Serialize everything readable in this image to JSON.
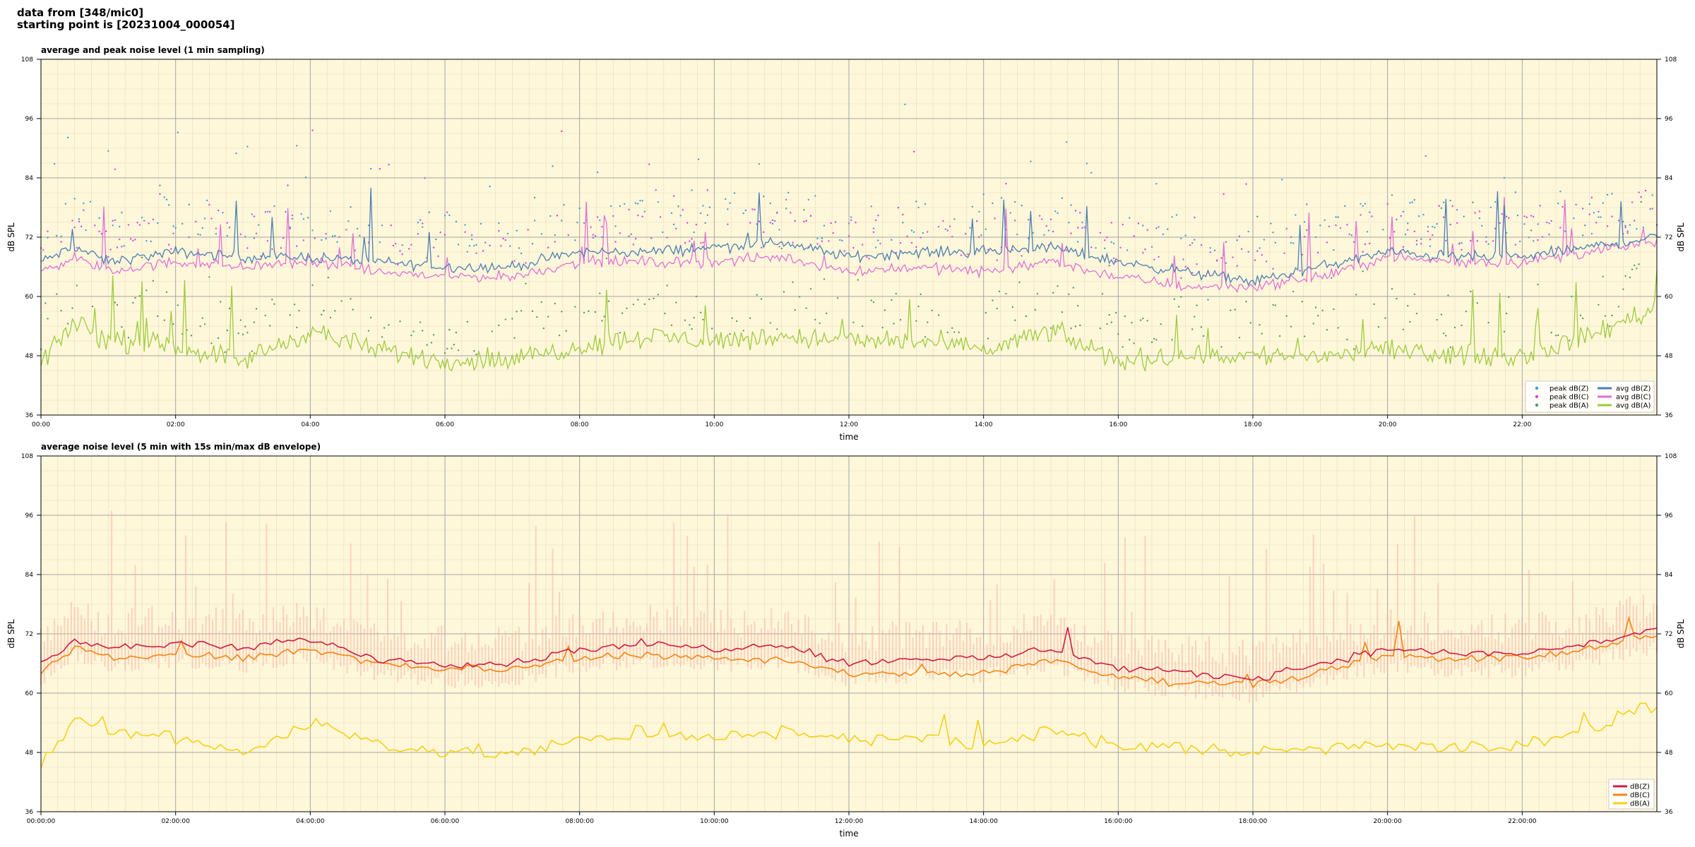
{
  "header": {
    "line1": "data from [348/mic0]",
    "line2": "starting point is [20231004_000054]"
  },
  "colors": {
    "background": "#fff7da",
    "grid_major": "#a6a6a6",
    "grid_minor": "#e6dcc0",
    "peak_z": "#3c9dd6",
    "peak_c": "#e23ee0",
    "peak_a": "#4c9b6a",
    "avg_z": "#4a7fb2",
    "avg_c": "#e26fd6",
    "avg_a": "#9ccc3c",
    "env": "#f6b5a5",
    "dbz": "#d01c44",
    "dbc": "#f68512",
    "dba": "#f6d012"
  },
  "chart_data": [
    {
      "type": "line",
      "title": "average and peak noise level (1 min sampling)",
      "xlabel": "time",
      "ylabel": "dB SPL",
      "xlim_hours": [
        0,
        24
      ],
      "ylim": [
        36,
        108
      ],
      "yticks": [
        36,
        48,
        60,
        72,
        84,
        96,
        108
      ],
      "xtick_labels": [
        "00:00",
        "02:00",
        "04:00",
        "06:00",
        "08:00",
        "10:00",
        "12:00",
        "14:00",
        "16:00",
        "18:00",
        "20:00",
        "22:00"
      ],
      "grid": true,
      "legend_position": "bottom-right",
      "legend": [
        "peak dB(Z)",
        "peak dB(C)",
        "peak dB(A)",
        "avg dB(Z)",
        "avg dB(C)",
        "avg dB(A)"
      ],
      "series": [
        {
          "name": "avg dB(Z)",
          "x": [
            0,
            0.5,
            1,
            2,
            3,
            4,
            5,
            6,
            7,
            8,
            9,
            10,
            11,
            12,
            13,
            14,
            15,
            16,
            17,
            18,
            19,
            20,
            21,
            22,
            23,
            24
          ],
          "values": [
            67,
            70,
            67,
            69,
            68,
            68,
            67,
            66,
            66,
            69,
            69,
            70,
            71,
            68,
            69,
            69,
            70,
            67,
            65,
            63,
            66,
            69,
            68,
            68,
            70,
            72
          ]
        },
        {
          "name": "avg dB(C)",
          "x": [
            0,
            0.5,
            1,
            2,
            3,
            4,
            5,
            6,
            7,
            8,
            9,
            10,
            11,
            12,
            13,
            14,
            15,
            16,
            17,
            18,
            19,
            20,
            21,
            22,
            23,
            24
          ],
          "values": [
            65,
            68,
            65,
            67,
            66,
            67,
            65,
            64,
            64,
            67,
            67,
            67,
            68,
            65,
            66,
            65,
            67,
            64,
            62,
            62,
            64,
            68,
            67,
            67,
            69,
            71
          ]
        },
        {
          "name": "avg dB(A)",
          "x": [
            0,
            0.5,
            1,
            2,
            3,
            4,
            5,
            6,
            7,
            8,
            9,
            10,
            11,
            12,
            13,
            14,
            15,
            16,
            17,
            18,
            19,
            20,
            21,
            22,
            23,
            24
          ],
          "values": [
            46,
            55,
            51,
            50,
            47,
            53,
            49,
            47,
            47,
            50,
            52,
            51,
            52,
            51,
            51,
            49,
            53,
            47,
            48,
            48,
            48,
            49,
            48,
            48,
            52,
            58
          ]
        }
      ]
    },
    {
      "type": "line",
      "title": "average noise level (5 min with 15s min/max dB envelope)",
      "xlabel": "time",
      "ylabel": "dB SPL",
      "xlim_hours": [
        0,
        24
      ],
      "ylim": [
        36,
        108
      ],
      "yticks": [
        36,
        48,
        60,
        72,
        84,
        96,
        108
      ],
      "xtick_labels": [
        "00:00:00",
        "02:00:00",
        "04:00:00",
        "06:00:00",
        "08:00:00",
        "10:00:00",
        "12:00:00",
        "14:00:00",
        "16:00:00",
        "18:00:00",
        "20:00:00",
        "22:00:00"
      ],
      "grid": true,
      "legend_position": "bottom-right",
      "legend": [
        "dB(Z)",
        "dB(C)",
        "dB(A)"
      ],
      "series": [
        {
          "name": "dB(Z)",
          "x": [
            0,
            0.5,
            1,
            2,
            3,
            4,
            5,
            6,
            7,
            8,
            9,
            10,
            11,
            12,
            13,
            14,
            15,
            16,
            17,
            18,
            19,
            20,
            21,
            22,
            23,
            24
          ],
          "values": [
            66,
            71,
            69,
            70,
            69,
            71,
            67,
            66,
            66,
            69,
            70,
            69,
            70,
            66,
            67,
            67,
            69,
            65,
            64,
            63,
            66,
            69,
            68,
            68,
            70,
            73
          ]
        },
        {
          "name": "dB(C)",
          "x": [
            0,
            0.5,
            1,
            2,
            3,
            4,
            5,
            6,
            7,
            8,
            9,
            10,
            11,
            12,
            13,
            14,
            15,
            16,
            17,
            18,
            19,
            20,
            21,
            22,
            23,
            24
          ],
          "values": [
            64,
            69,
            67,
            68,
            67,
            69,
            66,
            65,
            65,
            67,
            68,
            67,
            67,
            64,
            64,
            64,
            67,
            63,
            62,
            62,
            64,
            68,
            67,
            67,
            69,
            72
          ]
        },
        {
          "name": "dB(A)",
          "x": [
            0,
            0.5,
            1,
            2,
            3,
            4,
            5,
            6,
            7,
            8,
            9,
            10,
            11,
            12,
            13,
            14,
            15,
            16,
            17,
            18,
            19,
            20,
            21,
            22,
            23,
            24
          ],
          "values": [
            46,
            55,
            52,
            51,
            48,
            54,
            50,
            48,
            48,
            50,
            52,
            51,
            52,
            51,
            51,
            49,
            53,
            49,
            49,
            48,
            49,
            50,
            49,
            49,
            53,
            58
          ]
        }
      ]
    }
  ]
}
